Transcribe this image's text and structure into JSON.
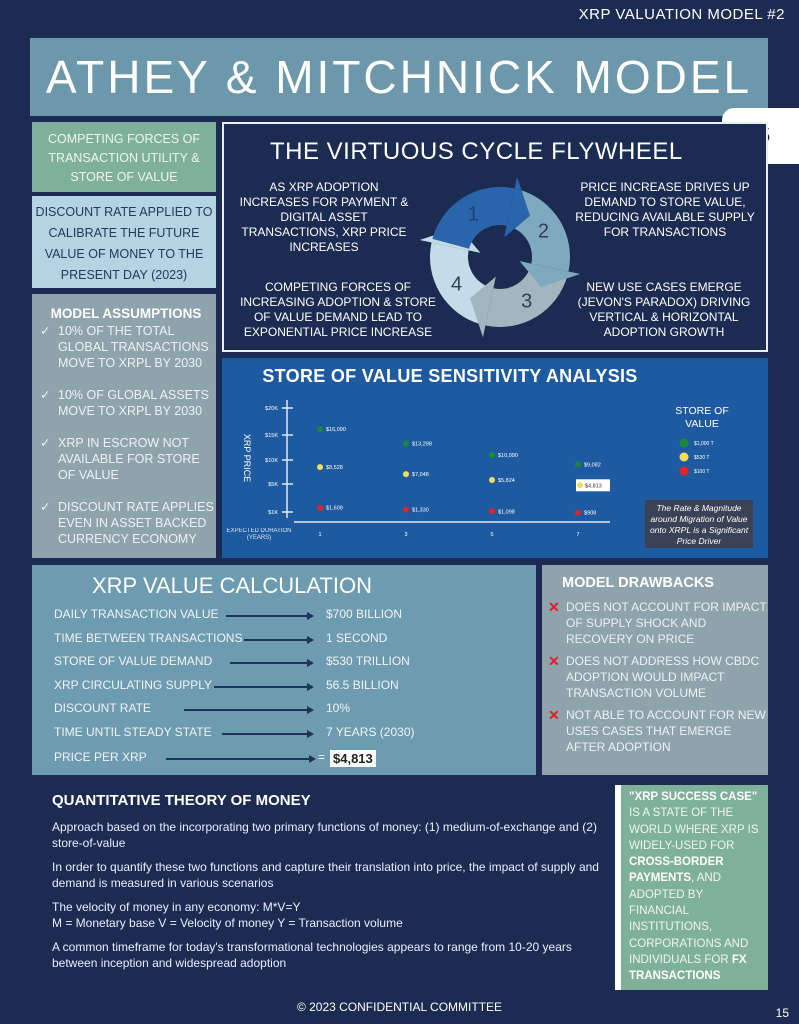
{
  "header": {
    "doc_label": "XRP VALUATION MODEL #2",
    "title": "ATHEY & MITCHNICK MODEL",
    "page_tab": "15"
  },
  "left": {
    "competing": "COMPETING FORCES OF TRANSACTION UTILITY & STORE OF VALUE",
    "discount": "DISCOUNT RATE APPLIED TO CALIBRATE THE FUTURE VALUE OF MONEY TO THE PRESENT DAY (2023)",
    "assumptions_title": "MODEL ASSUMPTIONS",
    "check_icon": "✓",
    "assumptions": [
      "10% OF THE TOTAL GLOBAL TRANSACTIONS MOVE TO XRPL BY 2030",
      "10% OF GLOBAL ASSETS MOVE TO XRPL BY 2030",
      "XRP IN ESCROW NOT AVAILABLE FOR STORE OF VALUE",
      "DISCOUNT RATE APPLIES EVEN IN ASSET BACKED CURRENCY ECONOMY"
    ]
  },
  "flywheel": {
    "title": "THE VIRTUOUS CYCLE FLYWHEEL",
    "steps": [
      {
        "num": "1",
        "text": "AS XRP ADOPTION INCREASES FOR PAYMENT & DIGITAL ASSET TRANSACTIONS, XRP PRICE INCREASES",
        "color": "#2a64aa"
      },
      {
        "num": "2",
        "text": "PRICE INCREASE DRIVES UP DEMAND TO STORE VALUE, REDUCING AVAILABLE SUPPLY FOR TRANSACTIONS",
        "color": "#7fa9bf"
      },
      {
        "num": "3",
        "text": "NEW USE CASES EMERGE (JEVON'S PARADOX) DRIVING VERTICAL & HORIZONTAL ADOPTION GROWTH",
        "color": "#a3b5bf"
      },
      {
        "num": "4",
        "text": "COMPETING FORCES OF INCREASING ADOPTION & STORE OF VALUE DEMAND LEAD TO EXPONENTIAL PRICE INCREASE",
        "color": "#c4dbe8"
      }
    ]
  },
  "chart_data": {
    "type": "scatter",
    "title": "STORE OF VALUE SENSITIVITY ANALYSIS",
    "xlabel": "EXPECTED DURATION (YEARS)",
    "ylabel": "XRP PRICE",
    "x": [
      1,
      3,
      5,
      7
    ],
    "x_tick_labels": [
      "1",
      "3",
      "5",
      "7"
    ],
    "y_ticks": [
      1000,
      5000,
      10000,
      15000,
      20000
    ],
    "y_tick_labels": [
      "$1K",
      "$5K",
      "$10K",
      "$15K",
      "$20K"
    ],
    "legend_title": "STORE OF VALUE",
    "legend_placement": "right",
    "highlight": {
      "series": 1,
      "index": 3
    },
    "series": [
      {
        "name": "$1,000 T",
        "color": "#1a8a3a",
        "values": [
          16090,
          13298,
          10990,
          9082
        ],
        "labels": [
          "$16,090",
          "$13,298",
          "$10,990",
          "$9,082"
        ]
      },
      {
        "name": "$530 T",
        "color": "#f3dc5a",
        "values": [
          8528,
          7048,
          5824,
          4813
        ],
        "labels": [
          "$8,528",
          "$7,048",
          "$5,824",
          "$4,813"
        ]
      },
      {
        "name": "$100 T",
        "color": "#e0242b",
        "values": [
          1609,
          1330,
          1098,
          908
        ],
        "labels": [
          "$1,609",
          "$1,330",
          "$1,098",
          "$908"
        ]
      }
    ],
    "annotation": "The Rate & Magnitude around Migration of Value onto XRPL is a Significant Price Driver"
  },
  "calc": {
    "title": "XRP VALUE CALCULATION",
    "rows": [
      {
        "label": "DAILY TRANSACTION VALUE",
        "value": "$700 BILLION"
      },
      {
        "label": "TIME BETWEEN TRANSACTIONS",
        "value": "1 SECOND"
      },
      {
        "label": "STORE OF VALUE DEMAND",
        "value": "$530 TRILLION"
      },
      {
        "label": "XRP CIRCULATING SUPPLY",
        "value": "56.5 BILLION"
      },
      {
        "label": "DISCOUNT RATE",
        "value": "10%"
      },
      {
        "label": "TIME UNTIL STEADY STATE",
        "value": "7 YEARS (2030)"
      }
    ],
    "price_label": "PRICE PER XRP",
    "equals": "=",
    "price_value": "$4,813"
  },
  "drawbacks": {
    "title": "MODEL DRAWBACKS",
    "x_icon": "✕",
    "items": [
      "DOES NOT ACCOUNT FOR IMPACT OF SUPPLY SHOCK AND RECOVERY ON PRICE",
      "DOES NOT ADDRESS HOW CBDC ADOPTION WOULD IMPACT TRANSACTION VOLUME",
      "NOT ABLE TO ACCOUNT FOR NEW USES CASES THAT EMERGE AFTER ADOPTION"
    ]
  },
  "qtm": {
    "title": "QUANTITATIVE THEORY OF MONEY",
    "p1": "Approach based on the incorporating two primary functions of money: (1) medium-of-exchange and (2) store-of-value",
    "p2": "In order to quantify these two functions and capture their translation into price, the impact of supply and demand is measured in various scenarios",
    "p3a": "The velocity of money in any economy: M*V=Y",
    "p3b": "M = Monetary base V = Velocity of money Y = Transaction volume",
    "p4": "A common timeframe for today's transformational technologies appears to range from 10-20 years between inception and widespread adoption"
  },
  "success": {
    "s1": "\"XRP SUCCESS CASE\"",
    "s2": " IS A STATE OF THE WORLD WHERE XRP IS WIDELY-USED FOR ",
    "s3": "CROSS-BORDER PAYMENTS",
    "s4": ", AND ADOPTED BY FINANCIAL INSTITUTIONS, CORPORATIONS AND INDIVIDUALS FOR ",
    "s5": "FX TRANSACTIONS"
  },
  "footer": {
    "copyright": "© 2023 CONFIDENTIAL COMMITTEE",
    "page": "15"
  }
}
